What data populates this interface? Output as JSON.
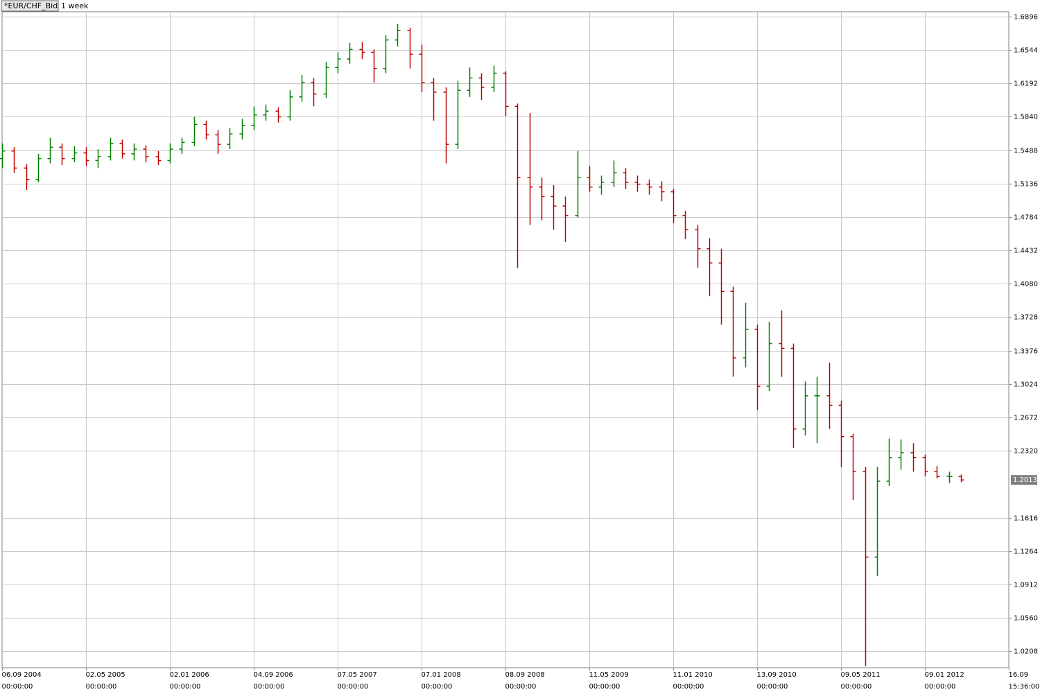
{
  "chart_data": {
    "type": "ohlc",
    "symbol": "*EUR/CHF_Bid",
    "interval": "1 week",
    "up_color": "#008000",
    "down_color": "#c00000",
    "grid": true,
    "last_value": 1.2013,
    "ylim": [
      1.0034,
      1.6947
    ],
    "yticks": [
      1.6896,
      1.6544,
      1.6192,
      {
        "value": 1.584,
        "label": "1.5840"
      },
      1.5488,
      1.5136,
      1.4784,
      1.4432,
      {
        "value": 1.408,
        "label": "1.4080"
      },
      1.3728,
      1.3376,
      1.3024,
      1.2672,
      {
        "value": 1.232,
        "label": "1.2320"
      },
      1.1616,
      1.1264,
      1.0912,
      {
        "value": 1.056,
        "label": "1.0560"
      },
      1.0208
    ],
    "categories": [
      "06.09 2004",
      null,
      null,
      null,
      null,
      null,
      null,
      "02.05 2005",
      null,
      null,
      null,
      null,
      null,
      null,
      "02.01 2006",
      null,
      null,
      null,
      null,
      null,
      null,
      "04.09 2006",
      null,
      null,
      null,
      null,
      null,
      null,
      "07.05 2007",
      null,
      null,
      null,
      null,
      null,
      null,
      "07.01 2008",
      null,
      null,
      null,
      null,
      null,
      null,
      "08.09 2008",
      null,
      null,
      null,
      null,
      null,
      null,
      "11.05 2009",
      null,
      null,
      null,
      null,
      null,
      null,
      "11.01 2010",
      null,
      null,
      null,
      null,
      null,
      null,
      "13.09 2010",
      null,
      null,
      null,
      null,
      null,
      null,
      "09.05 2011",
      null,
      null,
      null,
      null,
      null,
      null,
      "09.01 2012",
      null,
      null,
      null,
      null,
      null,
      null,
      "16.09"
    ],
    "time_labels": [
      "00:00:00",
      null,
      null,
      null,
      null,
      null,
      null,
      "00:00:00",
      null,
      null,
      null,
      null,
      null,
      null,
      "00:00:00",
      null,
      null,
      null,
      null,
      null,
      null,
      "00:00:00",
      null,
      null,
      null,
      null,
      null,
      null,
      "00:00:00",
      null,
      null,
      null,
      null,
      null,
      null,
      "00:00:00",
      null,
      null,
      null,
      null,
      null,
      null,
      "00:00:00",
      null,
      null,
      null,
      null,
      null,
      null,
      "00:00:00",
      null,
      null,
      null,
      null,
      null,
      null,
      "00:00:00",
      null,
      null,
      null,
      null,
      null,
      null,
      "00:00:00",
      null,
      null,
      null,
      null,
      null,
      null,
      "00:00:00",
      null,
      null,
      null,
      null,
      null,
      null,
      "00:00:00",
      null,
      null,
      null,
      null,
      null,
      null,
      "15:36:00"
    ],
    "open": [
      1.54,
      1.548,
      1.53,
      1.518,
      1.54,
      1.552,
      1.54,
      1.546,
      1.538,
      1.542,
      1.556,
      1.545,
      1.55,
      1.542,
      1.538,
      1.55,
      1.557,
      1.576,
      1.565,
      1.555,
      1.566,
      1.575,
      1.586,
      1.59,
      1.584,
      1.605,
      1.62,
      1.608,
      1.636,
      1.645,
      1.655,
      1.652,
      1.635,
      1.665,
      1.675,
      1.65,
      1.62,
      1.61,
      1.555,
      1.612,
      1.625,
      1.615,
      1.63,
      1.595,
      1.52,
      1.51,
      1.5,
      1.49,
      1.48,
      1.52,
      1.51,
      1.515,
      1.525,
      1.515,
      1.513,
      1.51,
      1.505,
      1.48,
      1.465,
      1.445,
      1.43,
      1.4,
      1.33,
      1.36,
      1.3,
      1.345,
      1.34,
      1.255,
      1.29,
      1.29,
      1.28,
      1.247,
      1.21,
      1.12,
      1.2,
      1.225,
      1.23,
      1.225,
      1.21,
      1.205,
      1.205,
      null,
      null,
      null,
      null
    ],
    "high": [
      1.556,
      1.552,
      1.534,
      1.545,
      1.562,
      1.556,
      1.553,
      1.552,
      1.55,
      1.562,
      1.56,
      1.556,
      1.554,
      1.548,
      1.556,
      1.562,
      1.584,
      1.58,
      1.57,
      1.572,
      1.582,
      1.595,
      1.597,
      1.594,
      1.612,
      1.628,
      1.625,
      1.642,
      1.652,
      1.662,
      1.663,
      1.655,
      1.67,
      1.682,
      1.678,
      1.66,
      1.625,
      1.615,
      1.622,
      1.636,
      1.63,
      1.638,
      1.632,
      1.598,
      1.588,
      1.52,
      1.512,
      1.5,
      1.548,
      1.532,
      1.522,
      1.538,
      1.53,
      1.522,
      1.518,
      1.516,
      1.508,
      1.485,
      1.47,
      1.456,
      1.445,
      1.405,
      1.388,
      1.365,
      1.368,
      1.38,
      1.345,
      1.305,
      1.31,
      1.325,
      1.285,
      1.25,
      1.215,
      1.215,
      1.245,
      1.244,
      1.24,
      1.228,
      1.216,
      1.21,
      1.207,
      null,
      null,
      null,
      null
    ],
    "low": [
      1.53,
      1.525,
      1.507,
      1.515,
      1.535,
      1.533,
      1.536,
      1.532,
      1.53,
      1.538,
      1.54,
      1.538,
      1.536,
      1.533,
      1.535,
      1.545,
      1.553,
      1.56,
      1.545,
      1.55,
      1.56,
      1.57,
      1.58,
      1.578,
      1.58,
      1.6,
      1.595,
      1.604,
      1.63,
      1.64,
      1.645,
      1.62,
      1.63,
      1.658,
      1.635,
      1.61,
      1.58,
      1.535,
      1.55,
      1.605,
      1.602,
      1.61,
      1.585,
      1.425,
      1.47,
      1.475,
      1.465,
      1.452,
      1.478,
      1.505,
      1.502,
      1.51,
      1.508,
      1.505,
      1.502,
      1.495,
      1.472,
      1.455,
      1.425,
      1.395,
      1.365,
      1.31,
      1.32,
      1.275,
      1.295,
      1.31,
      1.235,
      1.248,
      1.24,
      1.255,
      1.215,
      1.18,
      1.005,
      1.1,
      1.195,
      1.212,
      1.21,
      1.205,
      1.203,
      1.198,
      1.199,
      null,
      null,
      null,
      null
    ],
    "close": [
      1.548,
      1.53,
      1.518,
      1.54,
      1.552,
      1.54,
      1.546,
      1.538,
      1.542,
      1.556,
      1.545,
      1.55,
      1.542,
      1.538,
      1.55,
      1.557,
      1.576,
      1.565,
      1.555,
      1.566,
      1.575,
      1.586,
      1.59,
      1.584,
      1.605,
      1.62,
      1.608,
      1.636,
      1.645,
      1.655,
      1.652,
      1.635,
      1.665,
      1.675,
      1.65,
      1.62,
      1.61,
      1.555,
      1.612,
      1.625,
      1.615,
      1.63,
      1.595,
      1.52,
      1.51,
      1.5,
      1.49,
      1.48,
      1.52,
      1.51,
      1.515,
      1.525,
      1.515,
      1.513,
      1.51,
      1.505,
      1.48,
      1.465,
      1.445,
      1.43,
      1.4,
      1.33,
      1.36,
      1.3,
      1.345,
      1.34,
      1.255,
      1.29,
      1.29,
      1.28,
      1.247,
      1.21,
      1.12,
      1.2,
      1.225,
      1.23,
      1.225,
      1.21,
      1.205,
      1.205,
      1.2013,
      null,
      null,
      null,
      null
    ]
  }
}
